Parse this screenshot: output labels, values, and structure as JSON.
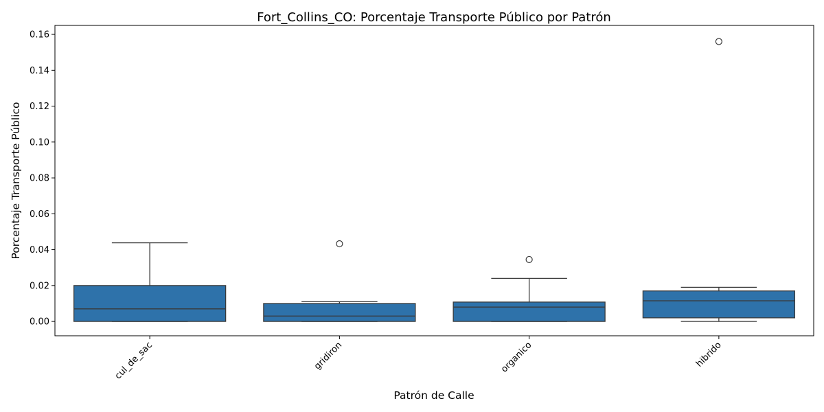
{
  "chart_data": {
    "type": "box",
    "title": "Fort_Collins_CO: Porcentaje Transporte Público por Patrón",
    "xlabel": "Patrón de Calle",
    "ylabel": "Porcentaje Transporte Público",
    "categories": [
      "cul_de_sac",
      "gridiron",
      "organico",
      "hibrido"
    ],
    "ylim": [
      -0.008,
      0.165
    ],
    "yticks": [
      0.0,
      0.02,
      0.04,
      0.06,
      0.08,
      0.1,
      0.12,
      0.14,
      0.16
    ],
    "ytick_labels": [
      "0.00",
      "0.02",
      "0.04",
      "0.06",
      "0.08",
      "0.10",
      "0.12",
      "0.14",
      "0.16"
    ],
    "x_tick_rotation": 45,
    "grid": false,
    "box_color": "#2e72aa",
    "line_color": "#3a3a3a",
    "boxes": [
      {
        "category": "cul_de_sac",
        "whisker_low": 0.0,
        "q1": 0.0,
        "median": 0.007,
        "q3": 0.02,
        "whisker_high": 0.0438,
        "outliers": []
      },
      {
        "category": "gridiron",
        "whisker_low": 0.0,
        "q1": 0.0,
        "median": 0.003,
        "q3": 0.01,
        "whisker_high": 0.011,
        "outliers": [
          0.0433
        ]
      },
      {
        "category": "organico",
        "whisker_low": 0.0,
        "q1": 0.0,
        "median": 0.008,
        "q3": 0.0108,
        "whisker_high": 0.024,
        "outliers": [
          0.0345
        ]
      },
      {
        "category": "hibrido",
        "whisker_low": 0.0,
        "q1": 0.002,
        "median": 0.0115,
        "q3": 0.017,
        "whisker_high": 0.019,
        "outliers": [
          0.156
        ]
      }
    ]
  }
}
